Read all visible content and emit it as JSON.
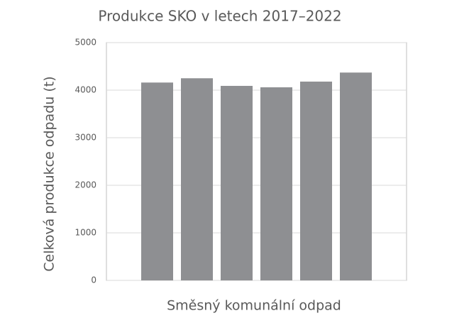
{
  "chart_data": {
    "type": "bar",
    "title": "Produkce SKO v letech 2017–2022",
    "x_label": "Směsný komunální odpad",
    "y_label": "Celková produkce odpadu (t)",
    "categories": [
      null,
      null,
      null,
      null,
      null,
      null
    ],
    "values": [
      4160,
      4250,
      4090,
      4060,
      4180,
      4370
    ],
    "color": "#8e8f92",
    "ylim": [
      0,
      5000
    ],
    "yticks": [
      0,
      1000,
      2000,
      3000,
      4000,
      5000
    ],
    "grid": true
  }
}
